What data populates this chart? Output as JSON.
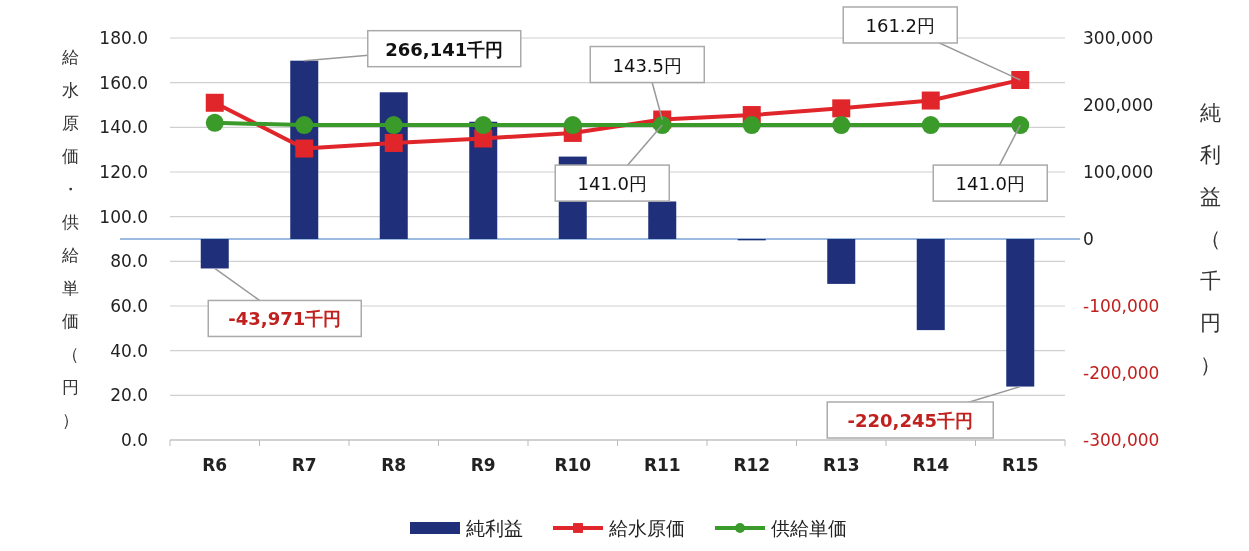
{
  "chart_data": {
    "type": "bar",
    "categories": [
      "R6",
      "R7",
      "R8",
      "R9",
      "R10",
      "R11",
      "R12",
      "R13",
      "R14",
      "R15"
    ],
    "ylabel": "給水原価・供給単価（円）",
    "y2label": "純利益（千円）",
    "ylim": [
      0,
      180
    ],
    "yticks": [
      {
        "value": 0,
        "label": "0.0"
      },
      {
        "value": 20,
        "label": "20.0"
      },
      {
        "value": 40,
        "label": "40.0"
      },
      {
        "value": 60,
        "label": "60.0"
      },
      {
        "value": 80,
        "label": "80.0"
      },
      {
        "value": 100,
        "label": "100.0"
      },
      {
        "value": 120,
        "label": "120.0"
      },
      {
        "value": 140,
        "label": "140.0"
      },
      {
        "value": 160,
        "label": "160.0"
      },
      {
        "value": 180,
        "label": "180.0"
      }
    ],
    "y2lim": [
      -300000,
      300000
    ],
    "y2ticks": [
      {
        "value": -300000,
        "label": "-300,000"
      },
      {
        "value": -200000,
        "label": "-200,000"
      },
      {
        "value": -100000,
        "label": "-100,000"
      },
      {
        "value": 0,
        "label": "0"
      },
      {
        "value": 100000,
        "label": "100,000"
      },
      {
        "value": 200000,
        "label": "200,000"
      },
      {
        "value": 300000,
        "label": "300,000"
      }
    ],
    "grid": "y",
    "legend": "bottom",
    "ref_lines": [
      {
        "axis": "y2",
        "value": 0,
        "color": "#3a78c2"
      }
    ],
    "series": [
      {
        "name": "純利益",
        "axis": "y2",
        "color": "#1f2f7a",
        "values": [
          -43971,
          266141,
          219000,
          175000,
          123000,
          56000,
          -2000,
          -67000,
          -136000,
          -220245
        ],
        "value_labels": [
          "-43,971千円",
          "266,141千円",
          null,
          null,
          null,
          null,
          null,
          null,
          null,
          "-220,245千円"
        ]
      },
      {
        "name": "給水原価",
        "type": "line",
        "axis": "y",
        "color": "#e0262a",
        "marker": "square",
        "values": [
          151.0,
          130.5,
          133.0,
          135.0,
          137.5,
          143.5,
          145.5,
          148.5,
          152.0,
          161.2
        ],
        "value_labels": [
          null,
          null,
          null,
          null,
          null,
          "143.5円",
          null,
          null,
          null,
          "161.2円"
        ]
      },
      {
        "name": "供給単価",
        "type": "line",
        "axis": "y",
        "color": "#3a9a2a",
        "marker": "circle",
        "values": [
          142.0,
          141.0,
          141.0,
          141.0,
          141.0,
          141.0,
          141.0,
          141.0,
          141.0,
          141.0
        ],
        "value_labels": [
          null,
          null,
          null,
          null,
          null,
          "141.0円",
          null,
          null,
          null,
          "141.0円"
        ]
      }
    ]
  }
}
